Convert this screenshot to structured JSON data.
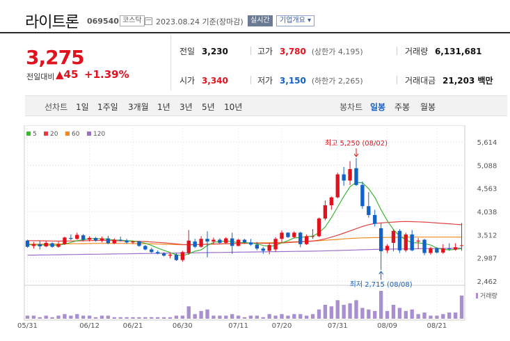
{
  "header": {
    "title": "라이트론",
    "code": "069540",
    "market": "코스닥",
    "date": "2023.08.24 기준(장마감)",
    "realtime_label": "실시간",
    "overview_label": "기업개요 ▾"
  },
  "price": {
    "current": "3,275",
    "change_label": "전일대비",
    "change": "▲45",
    "change_rate": "+1.39%"
  },
  "stats": {
    "prev_close_label": "전일",
    "prev_close": "3,230",
    "high_label": "고가",
    "high": "3,780",
    "upper_limit": "(상한가 4,195)",
    "volume_label": "거래량",
    "volume": "6,131,681",
    "open_label": "시가",
    "open": "3,340",
    "low_label": "저가",
    "low": "3,150",
    "lower_limit": "(하한가 2,265)",
    "amount_label": "거래대금",
    "amount": "21,203 백만"
  },
  "periods": {
    "line_chart": "선차트",
    "d1": "1일",
    "w1": "1주일",
    "m3": "3개월",
    "y1": "1년",
    "y3": "3년",
    "y5": "5년",
    "y10": "10년",
    "candle_chart": "봉차트",
    "daily": "일봉",
    "weekly": "주봉",
    "monthly": "월봉"
  },
  "colors": {
    "up": "#e0121e",
    "down": "#1261c4",
    "ma5": "#3fb534",
    "ma20": "#e04040",
    "ma60": "#f08a1c",
    "ma120": "#9c6fc8",
    "volume": "#a78fd0"
  },
  "chart_data": {
    "type": "candlestick",
    "legend": [
      "5",
      "20",
      "60",
      "120"
    ],
    "y_ticks": [
      "5,614",
      "5,088",
      "4,563",
      "4,038",
      "3,512",
      "2,987",
      "2,462"
    ],
    "ylim": [
      2462,
      5614
    ],
    "x_ticks": [
      "05/31",
      "06/12",
      "06/21",
      "06/30",
      "07/11",
      "07/20",
      "07/31",
      "08/09",
      "08/21"
    ],
    "high_annotation": "최고 5,250 (08/02)",
    "low_annotation": "최저 2,715 (08/08)",
    "volume_label": "거래량",
    "candles": [
      [
        3380,
        3400,
        3220,
        3240
      ],
      [
        3260,
        3350,
        3200,
        3300
      ],
      [
        3300,
        3380,
        3180,
        3250
      ],
      [
        3250,
        3370,
        3230,
        3330
      ],
      [
        3320,
        3340,
        3220,
        3240
      ],
      [
        3240,
        3360,
        3220,
        3300
      ],
      [
        3300,
        3470,
        3280,
        3450
      ],
      [
        3440,
        3520,
        3390,
        3420
      ],
      [
        3420,
        3560,
        3400,
        3510
      ],
      [
        3500,
        3530,
        3360,
        3400
      ],
      [
        3400,
        3480,
        3360,
        3440
      ],
      [
        3440,
        3460,
        3360,
        3380
      ],
      [
        3380,
        3470,
        3340,
        3430
      ],
      [
        3430,
        3490,
        3300,
        3320
      ],
      [
        3320,
        3430,
        3300,
        3400
      ],
      [
        3400,
        3470,
        3360,
        3380
      ],
      [
        3380,
        3420,
        3310,
        3340
      ],
      [
        3340,
        3380,
        3300,
        3360
      ],
      [
        3360,
        3380,
        3240,
        3260
      ],
      [
        3260,
        3280,
        3160,
        3180
      ],
      [
        3180,
        3220,
        3100,
        3120
      ],
      [
        3120,
        3160,
        3070,
        3090
      ],
      [
        3090,
        3120,
        3020,
        3040
      ],
      [
        3040,
        3110,
        2980,
        3060
      ],
      [
        3060,
        3100,
        2920,
        2940
      ],
      [
        2940,
        3150,
        2900,
        3120
      ],
      [
        3100,
        3620,
        3060,
        3380
      ],
      [
        3360,
        3420,
        3210,
        3240
      ],
      [
        3240,
        3480,
        3220,
        3420
      ],
      [
        3420,
        3590,
        3000,
        3360
      ],
      [
        3360,
        3450,
        3300,
        3400
      ],
      [
        3400,
        3430,
        3310,
        3330
      ],
      [
        3330,
        3460,
        3300,
        3430
      ],
      [
        3430,
        3560,
        3080,
        3260
      ],
      [
        3260,
        3420,
        3250,
        3400
      ],
      [
        3400,
        3420,
        3310,
        3340
      ],
      [
        3340,
        3420,
        3260,
        3290
      ],
      [
        3290,
        3350,
        3160,
        3200
      ],
      [
        3200,
        3240,
        3080,
        3150
      ],
      [
        3150,
        3330,
        3070,
        3280
      ],
      [
        3180,
        3460,
        3130,
        3420
      ],
      [
        3420,
        3610,
        3330,
        3560
      ],
      [
        3560,
        3570,
        3440,
        3460
      ],
      [
        3460,
        3590,
        3430,
        3560
      ],
      [
        3560,
        3580,
        3230,
        3300
      ],
      [
        3300,
        3520,
        3280,
        3480
      ],
      [
        3480,
        3640,
        3420,
        3480
      ],
      [
        3480,
        3900,
        3460,
        3880
      ],
      [
        3880,
        4290,
        3840,
        4180
      ],
      [
        4180,
        4380,
        4080,
        4360
      ],
      [
        4360,
        4920,
        4340,
        4880
      ],
      [
        4880,
        5050,
        4620,
        4740
      ],
      [
        4740,
        5180,
        4640,
        5000
      ],
      [
        5020,
        5250,
        4620,
        4640
      ],
      [
        4640,
        4720,
        4100,
        4160
      ],
      [
        4160,
        4480,
        3900,
        3960
      ],
      [
        3960,
        4080,
        3700,
        3760
      ],
      [
        3660,
        3780,
        2715,
        3140
      ],
      [
        3160,
        3300,
        3100,
        3260
      ],
      [
        3330,
        3640,
        3140,
        3600
      ],
      [
        3600,
        3640,
        3100,
        3160
      ],
      [
        3160,
        3560,
        3120,
        3520
      ],
      [
        3520,
        3620,
        3140,
        3160
      ],
      [
        3360,
        3440,
        3190,
        3380
      ],
      [
        3400,
        3420,
        3050,
        3100
      ],
      [
        3100,
        3240,
        3060,
        3210
      ],
      [
        3210,
        3230,
        3090,
        3110
      ],
      [
        3110,
        3300,
        3080,
        3200
      ],
      [
        3200,
        3320,
        3150,
        3190
      ],
      [
        3180,
        3320,
        3150,
        3230
      ],
      [
        3260,
        3780,
        3150,
        3275
      ]
    ],
    "ma5": [
      3290,
      3285,
      3280,
      3285,
      3275,
      3280,
      3300,
      3340,
      3380,
      3400,
      3420,
      3430,
      3420,
      3410,
      3395,
      3390,
      3380,
      3370,
      3350,
      3320,
      3270,
      3210,
      3160,
      3110,
      3060,
      3040,
      3080,
      3140,
      3170,
      3270,
      3340,
      3360,
      3370,
      3360,
      3330,
      3340,
      3320,
      3310,
      3270,
      3250,
      3270,
      3330,
      3380,
      3440,
      3450,
      3470,
      3480,
      3560,
      3690,
      3900,
      4140,
      4380,
      4600,
      4700,
      4690,
      4560,
      4360,
      4080,
      3830,
      3630,
      3480,
      3400,
      3330,
      3330,
      3310,
      3280,
      3210,
      3180,
      3170,
      3180,
      3200
    ],
    "ma20": [
      3380,
      3378,
      3376,
      3374,
      3372,
      3370,
      3370,
      3372,
      3374,
      3376,
      3380,
      3384,
      3386,
      3384,
      3380,
      3376,
      3372,
      3368,
      3364,
      3358,
      3350,
      3340,
      3330,
      3318,
      3305,
      3292,
      3288,
      3290,
      3292,
      3300,
      3304,
      3306,
      3310,
      3312,
      3316,
      3320,
      3324,
      3326,
      3320,
      3316,
      3320,
      3328,
      3336,
      3344,
      3352,
      3360,
      3370,
      3390,
      3420,
      3460,
      3500,
      3550,
      3600,
      3650,
      3700,
      3740,
      3770,
      3780,
      3790,
      3800,
      3810,
      3812,
      3810,
      3805,
      3800,
      3790,
      3780,
      3770,
      3760,
      3750,
      3740
    ],
    "ma60": [
      3300,
      3300,
      3300,
      3300,
      3302,
      3304,
      3306,
      3308,
      3310,
      3312,
      3314,
      3316,
      3318,
      3318,
      3318,
      3318,
      3316,
      3314,
      3312,
      3310,
      3306,
      3302,
      3298,
      3294,
      3290,
      3288,
      3288,
      3290,
      3292,
      3296,
      3300,
      3304,
      3308,
      3312,
      3316,
      3320,
      3324,
      3328,
      3330,
      3332,
      3336,
      3340,
      3346,
      3352,
      3358,
      3364,
      3370,
      3378,
      3388,
      3398,
      3408,
      3418,
      3428,
      3436,
      3442,
      3446,
      3448,
      3450,
      3452,
      3454,
      3456,
      3458,
      3460,
      3460,
      3460,
      3460,
      3460,
      3460,
      3460,
      3460,
      3460
    ],
    "ma120": [
      3050,
      3052,
      3054,
      3056,
      3058,
      3060,
      3062,
      3064,
      3066,
      3068,
      3070,
      3072,
      3074,
      3076,
      3078,
      3080,
      3082,
      3084,
      3086,
      3088,
      3090,
      3092,
      3094,
      3096,
      3098,
      3100,
      3102,
      3104,
      3106,
      3108,
      3110,
      3112,
      3114,
      3116,
      3118,
      3120,
      3122,
      3124,
      3126,
      3128,
      3130,
      3132,
      3134,
      3136,
      3138,
      3140,
      3142,
      3144,
      3148,
      3152,
      3156,
      3160,
      3164,
      3168,
      3172,
      3176,
      3180,
      3184,
      3186,
      3188,
      3190,
      3192,
      3194,
      3196,
      3198,
      3200,
      3202,
      3204,
      3206,
      3208,
      3210
    ],
    "volume": [
      2,
      2,
      1,
      2,
      1,
      2,
      3,
      2,
      3,
      2,
      2,
      1,
      2,
      2,
      1,
      1,
      1,
      1,
      1,
      1,
      1,
      1,
      1,
      1,
      2,
      2,
      8,
      3,
      5,
      6,
      2,
      2,
      2,
      3,
      2,
      1,
      2,
      2,
      1,
      3,
      2,
      3,
      2,
      3,
      3,
      2,
      3,
      6,
      9,
      8,
      12,
      9,
      10,
      12,
      7,
      6,
      5,
      18,
      5,
      9,
      7,
      5,
      6,
      3,
      4,
      2,
      2,
      3,
      4,
      4,
      15
    ]
  }
}
